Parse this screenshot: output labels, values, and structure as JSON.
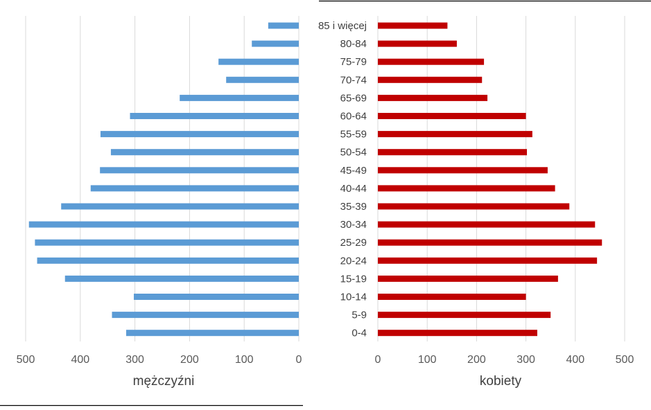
{
  "chart_data": {
    "type": "bar",
    "orientation": "horizontal",
    "layout": "population-pyramid",
    "categories": [
      "85 i więcej",
      "80-84",
      "75-79",
      "70-74",
      "65-69",
      "60-64",
      "55-59",
      "50-54",
      "45-49",
      "40-44",
      "35-39",
      "30-34",
      "25-29",
      "20-24",
      "15-19",
      "10-14",
      "5-9",
      "0-4"
    ],
    "series": [
      {
        "name": "mężczyźni",
        "color": "#5B9BD5",
        "values": [
          56,
          86,
          147,
          133,
          218,
          309,
          363,
          344,
          364,
          381,
          435,
          494,
          483,
          479,
          428,
          302,
          342,
          316
        ]
      },
      {
        "name": "kobiety",
        "color": "#C00000",
        "values": [
          141,
          160,
          215,
          211,
          222,
          300,
          313,
          302,
          344,
          359,
          388,
          440,
          454,
          444,
          365,
          300,
          350,
          323
        ]
      }
    ],
    "x_ticks": [
      "0",
      "100",
      "200",
      "300",
      "400",
      "500"
    ],
    "xlim": [
      0,
      500
    ],
    "left_xlabel": "mężczyźni",
    "right_xlabel": "kobiety",
    "grid": true,
    "legend": "none"
  }
}
